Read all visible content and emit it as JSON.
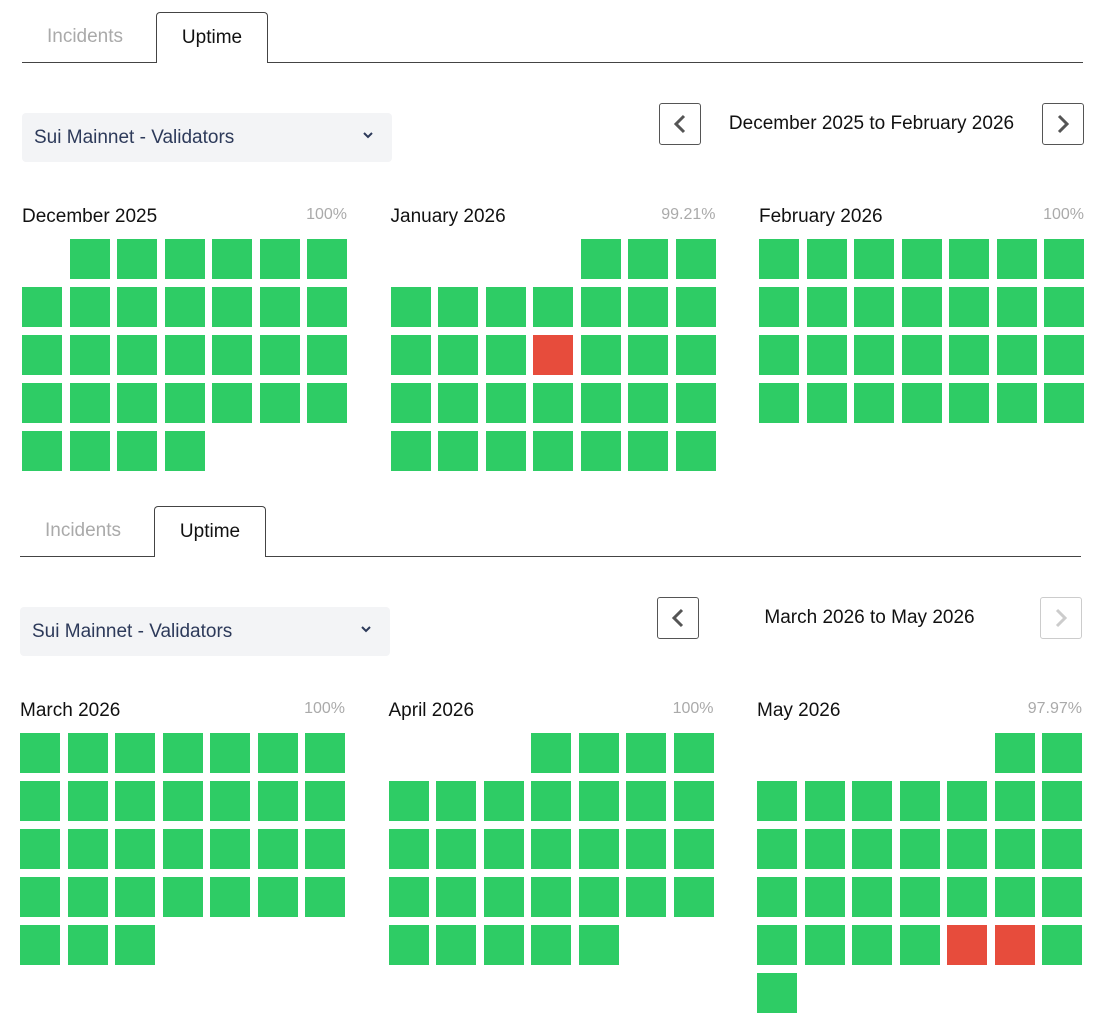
{
  "panels": [
    {
      "tabs": [
        "Incidents",
        "Uptime"
      ],
      "active_tab": 1,
      "dropdown": "Sui Mainnet - Validators",
      "range": "December 2025 to February 2026",
      "next_enabled": true,
      "months": [
        {
          "name": "December 2025",
          "uptime": "100%",
          "days": [
            null,
            "#2ecc65",
            "#2ecc65",
            "#2ecc65",
            "#2ecc65",
            "#2ecc65",
            "#2ecc65",
            "#2ecc65",
            "#2ecc65",
            "#2ecc65",
            "#2ecc65",
            "#2ecc65",
            "#2ecc65",
            "#2ecc65",
            "#2ecc65",
            "#2ecc65",
            "#2ecc65",
            "#2ecc65",
            "#2ecc65",
            "#2ecc65",
            "#2ecc65",
            "#2ecc65",
            "#2ecc65",
            "#2ecc65",
            "#2ecc65",
            "#2ecc65",
            "#2ecc65",
            "#2ecc65",
            "#2ecc65",
            "#2ecc65",
            "#2ecc65",
            "#2ecc65"
          ]
        },
        {
          "name": "January 2026",
          "uptime": "99.21%",
          "days": [
            null,
            null,
            null,
            null,
            "#2ecc65",
            "#2ecc65",
            "#2ecc65",
            "#2ecc65",
            "#2ecc65",
            "#2ecc65",
            "#2ecc65",
            "#2ecc65",
            "#2ecc65",
            "#2ecc65",
            "#2ecc65",
            "#2ecc65",
            "#2ecc65",
            "#e74c3c",
            "#2ecc65",
            "#2ecc65",
            "#2ecc65",
            "#2ecc65",
            "#2ecc65",
            "#2ecc65",
            "#2ecc65",
            "#2ecc65",
            "#2ecc65",
            "#2ecc65",
            "#2ecc65",
            "#2ecc65",
            "#2ecc65",
            "#2ecc65",
            "#2ecc65",
            "#2ecc65",
            "#2ecc65"
          ]
        },
        {
          "name": "February 2026",
          "uptime": "100%",
          "days": [
            "#2ecc65",
            "#2ecc65",
            "#2ecc65",
            "#2ecc65",
            "#2ecc65",
            "#2ecc65",
            "#2ecc65",
            "#2ecc65",
            "#2ecc65",
            "#2ecc65",
            "#2ecc65",
            "#2ecc65",
            "#2ecc65",
            "#2ecc65",
            "#2ecc65",
            "#2ecc65",
            "#2ecc65",
            "#2ecc65",
            "#2ecc65",
            "#2ecc65",
            "#2ecc65",
            "#2ecc65",
            "#2ecc65",
            "#2ecc65",
            "#2ecc65",
            "#2ecc65",
            "#2ecc65",
            "#2ecc65"
          ]
        }
      ]
    },
    {
      "tabs": [
        "Incidents",
        "Uptime"
      ],
      "active_tab": 1,
      "dropdown": "Sui Mainnet - Validators",
      "range": "March 2026 to May 2026",
      "next_enabled": false,
      "months": [
        {
          "name": "March 2026",
          "uptime": "100%",
          "days": [
            "#2ecc65",
            "#2ecc65",
            "#2ecc65",
            "#2ecc65",
            "#2ecc65",
            "#2ecc65",
            "#2ecc65",
            "#2ecc65",
            "#2ecc65",
            "#2ecc65",
            "#2ecc65",
            "#2ecc65",
            "#2ecc65",
            "#2ecc65",
            "#2ecc65",
            "#2ecc65",
            "#2ecc65",
            "#2ecc65",
            "#2ecc65",
            "#2ecc65",
            "#2ecc65",
            "#2ecc65",
            "#2ecc65",
            "#2ecc65",
            "#2ecc65",
            "#2ecc65",
            "#2ecc65",
            "#2ecc65",
            "#2ecc65",
            "#2ecc65",
            "#2ecc65"
          ]
        },
        {
          "name": "April 2026",
          "uptime": "100%",
          "days": [
            null,
            null,
            null,
            "#2ecc65",
            "#2ecc65",
            "#2ecc65",
            "#2ecc65",
            "#2ecc65",
            "#2ecc65",
            "#2ecc65",
            "#2ecc65",
            "#2ecc65",
            "#2ecc65",
            "#2ecc65",
            "#2ecc65",
            "#2ecc65",
            "#2ecc65",
            "#2ecc65",
            "#2ecc65",
            "#2ecc65",
            "#2ecc65",
            "#2ecc65",
            "#2ecc65",
            "#2ecc65",
            "#2ecc65",
            "#2ecc65",
            "#2ecc65",
            "#2ecc65",
            "#2ecc65",
            "#2ecc65",
            "#2ecc65",
            "#2ecc65",
            "#2ecc65"
          ]
        },
        {
          "name": "May 2026",
          "uptime": "97.97%",
          "days": [
            null,
            null,
            null,
            null,
            null,
            "#2ecc65",
            "#2ecc65",
            "#2ecc65",
            "#2ecc65",
            "#2ecc65",
            "#2ecc65",
            "#2ecc65",
            "#2ecc65",
            "#2ecc65",
            "#2ecc65",
            "#2ecc65",
            "#2ecc65",
            "#2ecc65",
            "#2ecc65",
            "#2ecc65",
            "#2ecc65",
            "#2ecc65",
            "#2ecc65",
            "#2ecc65",
            "#2ecc65",
            "#2ecc65",
            "#2ecc65",
            "#2ecc65",
            "#2ecc65",
            "#2ecc65",
            "#2ecc65",
            "#2ecc65",
            "#e74c3c",
            "#e74c3c",
            "#2ecc65",
            "#2ecc65"
          ]
        }
      ]
    }
  ]
}
